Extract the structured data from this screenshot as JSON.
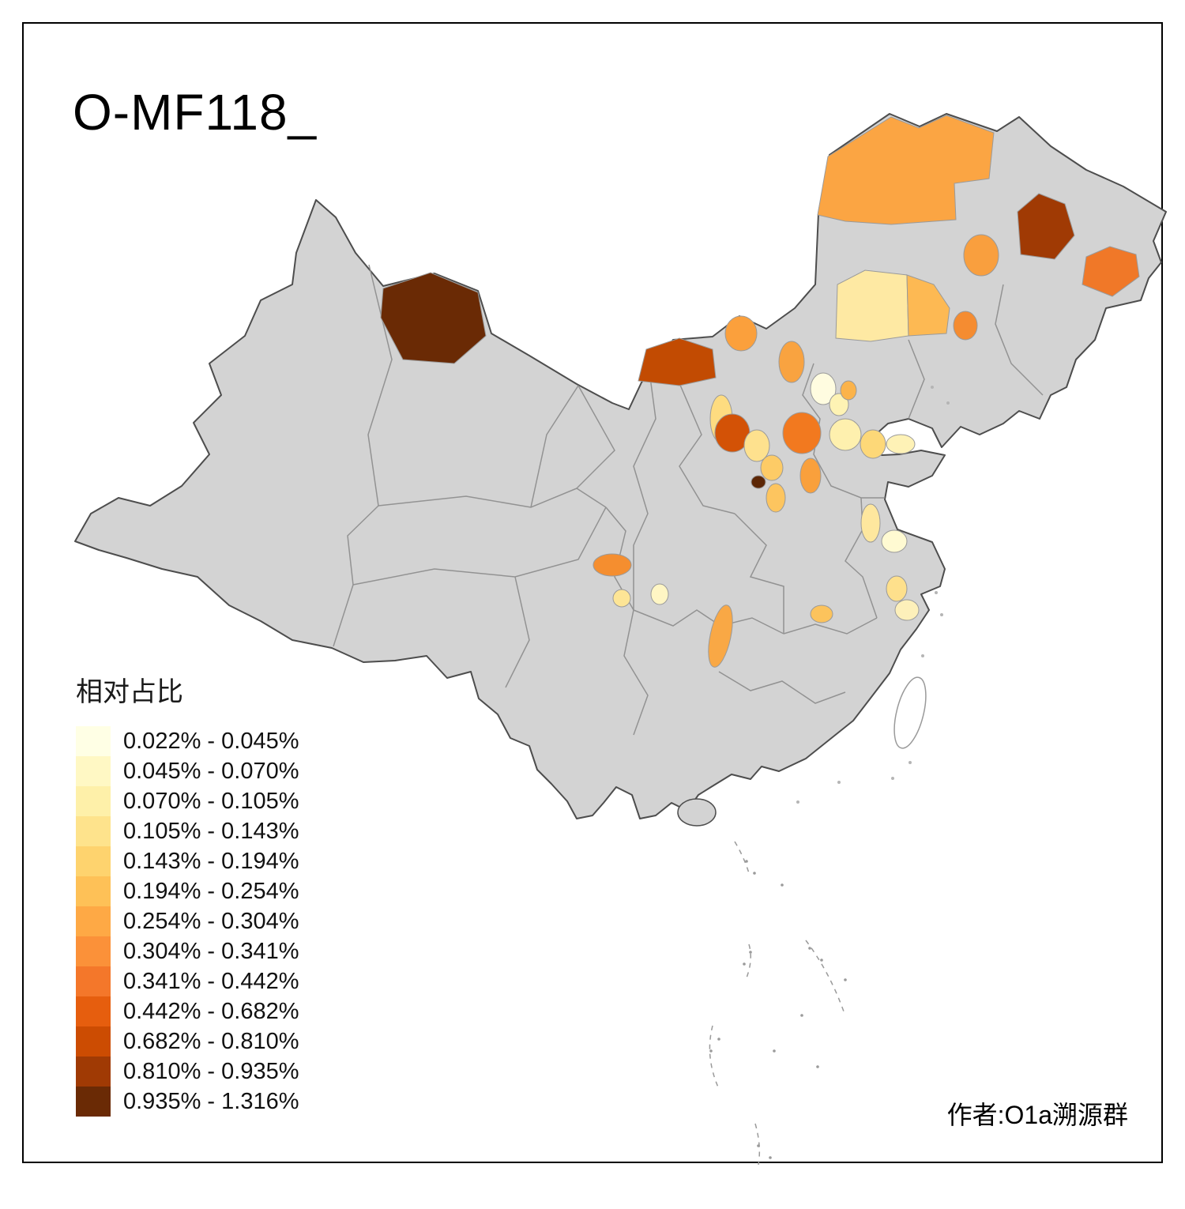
{
  "title": "O-MF118_",
  "legend": {
    "title": "相对占比",
    "bins": [
      {
        "range": "0.022% - 0.045%",
        "color": "#FFFFE5"
      },
      {
        "range": "0.045% - 0.070%",
        "color": "#FFF8C4"
      },
      {
        "range": "0.070% - 0.105%",
        "color": "#FEF0A9"
      },
      {
        "range": "0.105% - 0.143%",
        "color": "#FEE38C"
      },
      {
        "range": "0.143% - 0.194%",
        "color": "#FED36E"
      },
      {
        "range": "0.194% - 0.254%",
        "color": "#FEC157"
      },
      {
        "range": "0.254% - 0.304%",
        "color": "#FEA945"
      },
      {
        "range": "0.304% - 0.341%",
        "color": "#FB9139"
      },
      {
        "range": "0.341% - 0.442%",
        "color": "#F4772A"
      },
      {
        "range": "0.442% - 0.682%",
        "color": "#E65E0E"
      },
      {
        "range": "0.682% - 0.810%",
        "color": "#CC4C02"
      },
      {
        "range": "0.810% - 0.935%",
        "color": "#A03A04"
      },
      {
        "range": "0.935% - 1.316%",
        "color": "#6A2A05"
      }
    ]
  },
  "map": {
    "land_color": "#D3D3D3",
    "border_color": "#4D4D4D",
    "province_line_color": "#8C8C8C",
    "regions": [
      "#6A2A05",
      "#C24B02",
      "#A03A04",
      "#F07828",
      "#FBA543",
      "#F99F3E",
      "#FEE9A3",
      "#FDB953",
      "#F58C31",
      "#FBA03C",
      "#F9A340",
      "#FFFCE0",
      "#FEF3B4",
      "#FBB34A",
      "#FEDC80",
      "#D35206",
      "#F2791F",
      "#FEE18E",
      "#FDCB66",
      "#5C2605",
      "#FDC55F",
      "#F9A03C",
      "#FEF0AE",
      "#FDD878",
      "#FEF2B6",
      "#FEE79E",
      "#FFFAD2",
      "#FEE08C",
      "#FDF0BA",
      "#F58E2F",
      "#FDE596",
      "#FFF6C4",
      "#F9A845",
      "#FCC35C"
    ]
  },
  "credit": "作者:O1a溯源群"
}
